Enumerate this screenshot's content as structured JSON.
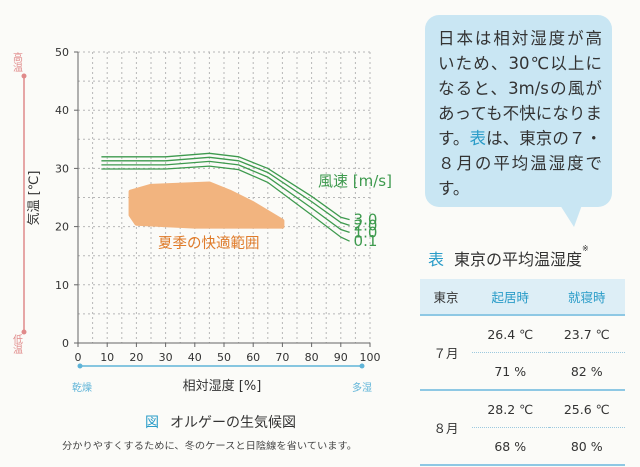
{
  "chart_data": {
    "type": "line",
    "title": "オルゲーの生気候図",
    "figure_label": "図",
    "subtitle": "分かりやすくするために、冬のケースと日陰線を省いています。",
    "xlabel": "相対湿度 [%]",
    "ylabel": "気温 [℃]",
    "x_ticks": [
      "0",
      "10",
      "20",
      "30",
      "40",
      "50",
      "60",
      "70",
      "80",
      "90",
      "100"
    ],
    "y_ticks": [
      "0",
      "10",
      "20",
      "30",
      "40",
      "50"
    ],
    "xlim": [
      0,
      100
    ],
    "ylim": [
      0,
      50
    ],
    "grid": true,
    "x_axis_ends": {
      "left": "乾燥",
      "right": "多湿"
    },
    "y_axis_ends": {
      "bottom": "低温",
      "top": "高温"
    },
    "legend_title": "風速 [m/s]",
    "comfort_label": "夏季の快適範囲",
    "colors": {
      "series": "#3e9a4e",
      "zone": "#f2b47f",
      "zone_label": "#e07c2b",
      "axis_accent": "#e08a8a",
      "x_accent": "#5fb4d8",
      "highlight": "#2a9cc8"
    },
    "comfort_zone": {
      "top": [
        [
          18,
          26
        ],
        [
          25,
          27
        ],
        [
          45,
          27.4
        ],
        [
          52,
          26
        ],
        [
          60,
          24
        ],
        [
          70,
          21
        ]
      ],
      "bottom": [
        [
          70,
          20
        ],
        [
          60,
          20
        ],
        [
          40,
          20
        ],
        [
          20,
          20.5
        ],
        [
          18,
          22
        ]
      ]
    },
    "series": [
      {
        "name": "3.0",
        "values": [
          [
            8,
            32
          ],
          [
            30,
            32
          ],
          [
            45,
            32.6
          ],
          [
            55,
            32
          ],
          [
            65,
            30
          ],
          [
            80,
            25.2
          ],
          [
            90,
            21.6
          ],
          [
            93,
            21.2
          ]
        ]
      },
      {
        "name": "2.0",
        "values": [
          [
            8,
            31.3
          ],
          [
            30,
            31.3
          ],
          [
            45,
            31.9
          ],
          [
            55,
            31.3
          ],
          [
            65,
            29.3
          ],
          [
            80,
            24.3
          ],
          [
            90,
            20.7
          ],
          [
            93,
            20.2
          ]
        ]
      },
      {
        "name": "1.0",
        "values": [
          [
            8,
            30.6
          ],
          [
            30,
            30.6
          ],
          [
            45,
            31.2
          ],
          [
            55,
            30.6
          ],
          [
            65,
            28.5
          ],
          [
            80,
            23.2
          ],
          [
            90,
            19.5
          ],
          [
            93,
            19
          ]
        ]
      },
      {
        "name": "0.1",
        "values": [
          [
            8,
            29.9
          ],
          [
            30,
            29.9
          ],
          [
            45,
            30.4
          ],
          [
            55,
            29.8
          ],
          [
            65,
            27.6
          ],
          [
            80,
            22
          ],
          [
            90,
            18.2
          ],
          [
            93,
            17.5
          ]
        ]
      }
    ]
  },
  "callout": {
    "parts": [
      "日本は相対湿度が高いため、30℃以上になると、3m/sの風があっても不快になります。",
      "表",
      "は、東京の７・８月の平均温湿度です。"
    ]
  },
  "table": {
    "label": "表",
    "title": "東京の平均温湿度",
    "note_mark": "※",
    "headers": [
      "東京",
      "起居時",
      "就寝時"
    ],
    "rows": [
      {
        "month": "７月",
        "temp": [
          "26.4 ℃",
          "23.7 ℃"
        ],
        "humidity": [
          "71 %",
          "82 %"
        ]
      },
      {
        "month": "８月",
        "temp": [
          "28.2 ℃",
          "25.6 ℃"
        ],
        "humidity": [
          "68 %",
          "80 %"
        ]
      }
    ]
  }
}
